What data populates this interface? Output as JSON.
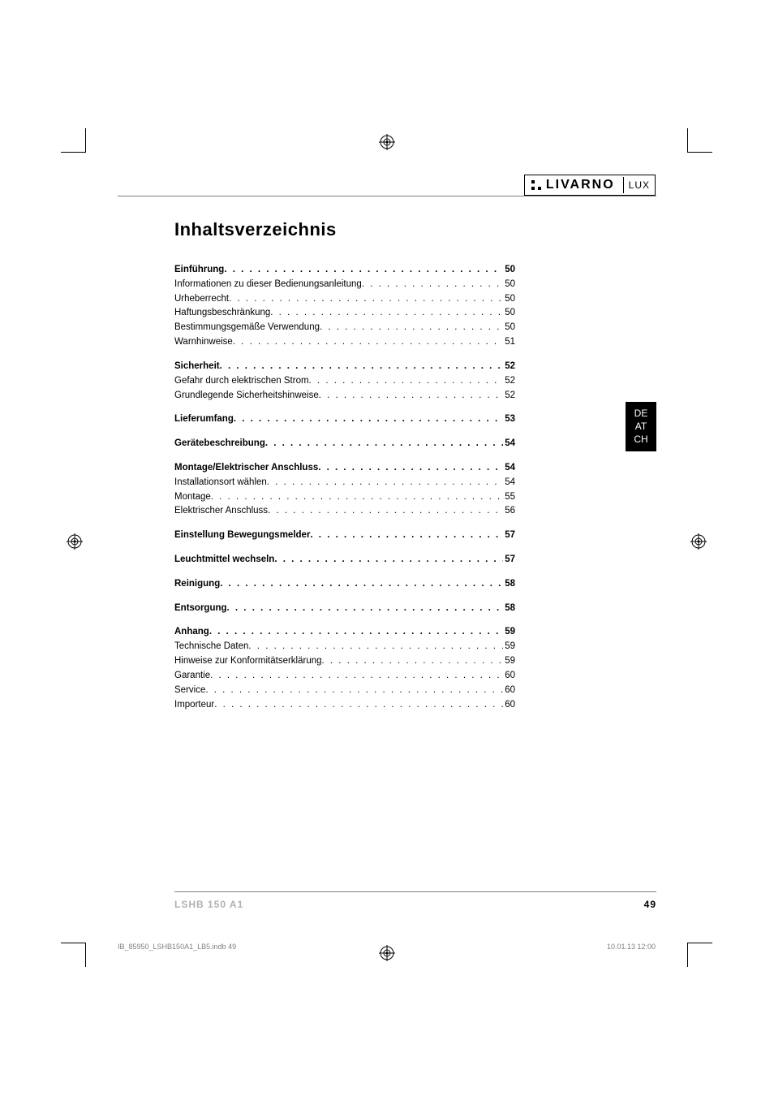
{
  "brand": {
    "name": "LIVARNO",
    "suffix": "LUX"
  },
  "title": "Inhaltsverzeichnis",
  "lang_tab": [
    "DE",
    "AT",
    "CH"
  ],
  "toc": [
    {
      "type": "section",
      "label": "Einführung",
      "page": "50"
    },
    {
      "type": "sub",
      "label": "Informationen zu dieser Bedienungsanleitung",
      "page": "50"
    },
    {
      "type": "sub",
      "label": "Urheberrecht",
      "page": "50"
    },
    {
      "type": "sub",
      "label": "Haftungsbeschränkung",
      "page": "50"
    },
    {
      "type": "sub",
      "label": "Bestimmungsgemäße Verwendung",
      "page": "50"
    },
    {
      "type": "sub",
      "label": "Warnhinweise",
      "page": "51"
    },
    {
      "type": "section",
      "label": "Sicherheit",
      "page": "52"
    },
    {
      "type": "sub",
      "label": "Gefahr durch elektrischen Strom",
      "page": "52"
    },
    {
      "type": "sub",
      "label": "Grundlegende Sicherheitshinweise",
      "page": "52"
    },
    {
      "type": "section",
      "label": "Lieferumfang",
      "page": "53"
    },
    {
      "type": "section",
      "label": "Gerätebeschreibung",
      "page": "54"
    },
    {
      "type": "section",
      "label": "Montage/Elektrischer Anschluss",
      "page": "54"
    },
    {
      "type": "sub",
      "label": "Installationsort wählen",
      "page": "54"
    },
    {
      "type": "sub",
      "label": "Montage",
      "page": "55"
    },
    {
      "type": "sub",
      "label": "Elektrischer Anschluss",
      "page": "56"
    },
    {
      "type": "section",
      "label": "Einstellung Bewegungsmelder",
      "page": "57"
    },
    {
      "type": "section",
      "label": "Leuchtmittel wechseln",
      "page": "57"
    },
    {
      "type": "section",
      "label": "Reinigung",
      "page": "58"
    },
    {
      "type": "section",
      "label": "Entsorgung",
      "page": "58"
    },
    {
      "type": "section",
      "label": "Anhang",
      "page": "59"
    },
    {
      "type": "sub",
      "label": "Technische Daten",
      "page": "59"
    },
    {
      "type": "sub",
      "label": "Hinweise zur Konformitätserklärung",
      "page": "59"
    },
    {
      "type": "sub",
      "label": "Garantie",
      "page": "60"
    },
    {
      "type": "sub",
      "label": "Service",
      "page": "60"
    },
    {
      "type": "sub",
      "label": "Importeur",
      "page": "60"
    }
  ],
  "footer": {
    "model": "LSHB 150 A1",
    "page_number": "49"
  },
  "printline": {
    "file": "IB_85950_LSHB150A1_LB5.indb   49",
    "timestamp": "10.01.13   12:00"
  },
  "colors": {
    "text": "#000000",
    "muted": "#808080",
    "faded": "#b0b0b0",
    "bg": "#ffffff"
  }
}
